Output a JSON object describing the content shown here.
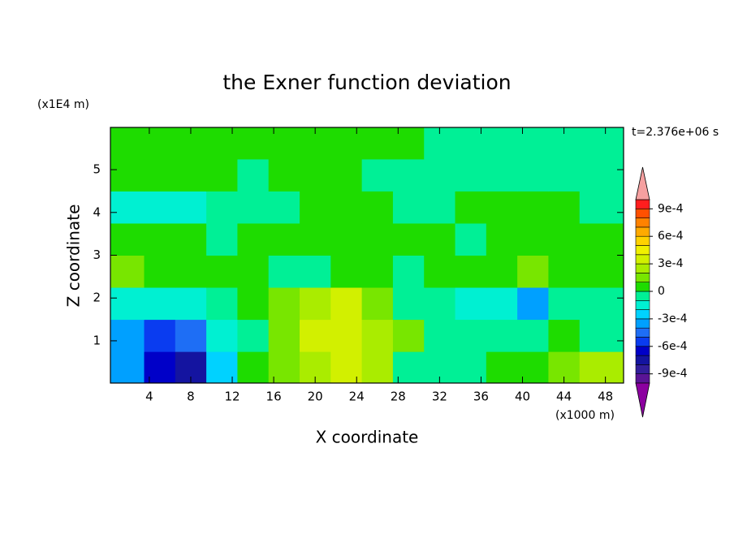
{
  "chart_data": {
    "type": "contour",
    "title": "the Exner function deviation",
    "xlabel": "X coordinate",
    "ylabel": "Z coordinate",
    "xunit": "(x1000 m)",
    "yunit": "(x1E4 m)",
    "annotation": "t=2.376e+06 s",
    "xlim": [
      0.25,
      49.75
    ],
    "ylim": [
      0.0125,
      5.9875
    ],
    "xticks": [
      4,
      8,
      12,
      16,
      20,
      24,
      28,
      32,
      36,
      40,
      44,
      48
    ],
    "yticks": [
      1,
      2,
      3,
      4,
      5
    ],
    "x": [
      2,
      5,
      8,
      11,
      14,
      17,
      20,
      23,
      26,
      29,
      32,
      35,
      38,
      41,
      44,
      47
    ],
    "y": [
      0.375,
      1.125,
      1.875,
      2.625,
      3.375,
      4.125,
      4.875,
      5.625
    ],
    "z": [
      [
        -0.0004,
        -0.0007,
        -0.0008,
        -0.0003,
        5e-05,
        0.00015,
        0.00025,
        0.00035,
        0.00025,
        -5e-05,
        -5e-05,
        -5e-05,
        5e-05,
        5e-05,
        0.00015,
        0.00025
      ],
      [
        -0.0004,
        -0.0006,
        -0.0005,
        -0.0002,
        -5e-05,
        0.00015,
        0.0003,
        0.00035,
        0.00025,
        0.00015,
        -5e-05,
        -5e-05,
        -5e-05,
        -5e-05,
        5e-05,
        -5e-05
      ],
      [
        -0.0002,
        -0.00015,
        -0.00015,
        -5e-05,
        5e-05,
        0.00015,
        0.00025,
        0.00035,
        0.00015,
        -5e-05,
        -5e-05,
        -0.00015,
        -0.0002,
        -0.00035,
        -5e-05,
        -5e-05
      ],
      [
        0.00015,
        5e-05,
        5e-05,
        5e-05,
        5e-05,
        -5e-05,
        -5e-05,
        5e-05,
        5e-05,
        -5e-05,
        5e-05,
        5e-05,
        5e-05,
        0.00015,
        5e-05,
        5e-05
      ],
      [
        5e-05,
        5e-05,
        5e-05,
        -5e-05,
        5e-05,
        5e-05,
        5e-05,
        5e-05,
        5e-05,
        5e-05,
        5e-05,
        -5e-05,
        5e-05,
        5e-05,
        5e-05,
        5e-05
      ],
      [
        -0.00015,
        -0.00015,
        -0.00015,
        -5e-05,
        -5e-05,
        -5e-05,
        5e-05,
        5e-05,
        5e-05,
        -5e-05,
        -5e-05,
        5e-05,
        5e-05,
        5e-05,
        5e-05,
        -5e-05
      ],
      [
        5e-05,
        5e-05,
        5e-05,
        5e-05,
        -5e-05,
        5e-05,
        5e-05,
        5e-05,
        -5e-05,
        -5e-05,
        -5e-05,
        -5e-05,
        -5e-05,
        -5e-05,
        -5e-05,
        -5e-05
      ],
      [
        5e-05,
        5e-05,
        5e-05,
        5e-05,
        5e-05,
        5e-05,
        5e-05,
        5e-05,
        5e-05,
        5e-05,
        -5e-05,
        -5e-05,
        -5e-05,
        -5e-05,
        -5e-05,
        -5e-05
      ]
    ],
    "levels": [
      -0.001,
      -0.0009,
      -0.0008,
      -0.0007,
      -0.0006,
      -0.0005,
      -0.0004,
      -0.0003,
      -0.0002,
      -0.0001,
      0,
      0.0001,
      0.0002,
      0.0003,
      0.0004,
      0.0005,
      0.0006,
      0.0007,
      0.0008,
      0.0009,
      0.001
    ],
    "colors": [
      "#5a1496",
      "#321e9b",
      "#1414a0",
      "#0000c8",
      "#0a3cf0",
      "#1e6ef5",
      "#00a0ff",
      "#00d2ff",
      "#00f0d2",
      "#00f096",
      "#1edc00",
      "#78e600",
      "#aaec00",
      "#d2f000",
      "#f0f000",
      "#ffd200",
      "#ffaa00",
      "#ff8200",
      "#ff5000",
      "#ff1e1e"
    ],
    "under_color": "#8c00a0",
    "over_color": "#f5a0a0",
    "cticks": [
      {
        "value": 0.0009,
        "label": "9e-4"
      },
      {
        "value": 0.0006,
        "label": "6e-4"
      },
      {
        "value": 0.0003,
        "label": "3e-4"
      },
      0,
      {
        "value": -0.0003,
        "label": "-3e-4"
      },
      {
        "value": -0.0006,
        "label": "-6e-4"
      },
      {
        "value": -0.0009,
        "label": "-9e-4"
      }
    ]
  }
}
